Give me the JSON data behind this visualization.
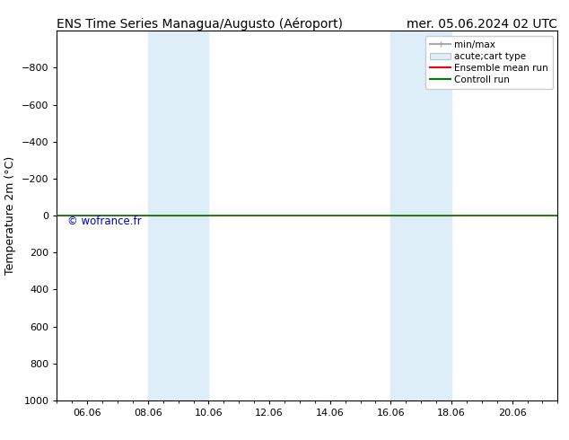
{
  "title_left": "ENS Time Series Managua/Augusto (Aéroport)",
  "title_right": "mer. 05.06.2024 02 UTC",
  "ylabel": "Temperature 2m (°C)",
  "ylim_bottom": -1000,
  "ylim_top": 1000,
  "y_inverted": true,
  "yticks": [
    -800,
    -600,
    -400,
    -200,
    0,
    200,
    400,
    600,
    800,
    1000
  ],
  "xtick_labels": [
    "06.06",
    "08.06",
    "10.06",
    "12.06",
    "14.06",
    "16.06",
    "18.06",
    "20.06"
  ],
  "xtick_positions": [
    1,
    3,
    5,
    7,
    9,
    11,
    13,
    15
  ],
  "xlim": [
    0,
    16
  ],
  "shaded_bands": [
    {
      "x_start": 3,
      "x_end": 5
    },
    {
      "x_start": 11,
      "x_end": 13
    }
  ],
  "shade_color": "#ddeef8",
  "horizontal_line_y": 0,
  "line_color_ensemble": "#ff0000",
  "line_color_control": "#008000",
  "watermark": "© wofrance.fr",
  "watermark_color": "#0000cc",
  "background_color": "#ffffff",
  "legend_entries": [
    {
      "label": "min/max",
      "color": "#aaaaaa",
      "lw": 1.5
    },
    {
      "label": "acute;cart type",
      "color": "#ddeef8",
      "lw": 8
    },
    {
      "label": "Ensemble mean run",
      "color": "#ff0000",
      "lw": 1.5
    },
    {
      "label": "Controll run",
      "color": "#008000",
      "lw": 1.5
    }
  ],
  "title_fontsize": 10,
  "axis_label_fontsize": 9,
  "tick_fontsize": 8,
  "legend_fontsize": 7.5
}
